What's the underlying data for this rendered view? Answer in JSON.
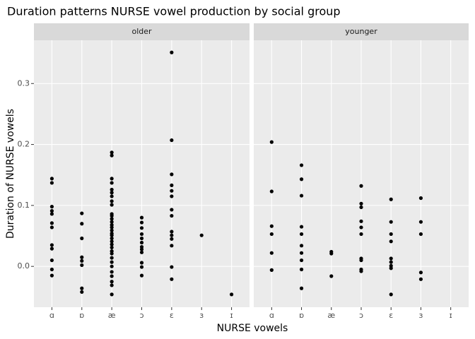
{
  "chart_data": {
    "type": "scatter",
    "title": "Duration patterns NURSE vowel production by social group",
    "x_label": "NURSE vowels",
    "y_label": "Duration of NURSE vowels",
    "categories": [
      "ɑ",
      "ɒ",
      "æ",
      "ɔ",
      "ɛ",
      "ɜ",
      "ɪ"
    ],
    "ylim": [
      -0.067,
      0.371
    ],
    "yticks": [
      {
        "value": 0,
        "label": "0.0"
      },
      0.1,
      0.2,
      0.3
    ],
    "color": "#000000",
    "grid": true,
    "panels": [
      {
        "name": "older",
        "values": [
          [
            0.144,
            0.137,
            0.098,
            0.091,
            0.086,
            0.071,
            0.064,
            0.035,
            0.029,
            0.01,
            -0.005,
            -0.015
          ],
          [
            0.087,
            0.07,
            0.046,
            0.015,
            0.009,
            0.002,
            -0.036,
            -0.042
          ],
          [
            0.187,
            0.182,
            0.144,
            0.137,
            0.126,
            0.121,
            0.115,
            0.107,
            0.101,
            0.086,
            0.083,
            0.078,
            0.073,
            0.068,
            0.064,
            0.059,
            0.054,
            0.051,
            0.046,
            0.041,
            0.036,
            0.031,
            0.025,
            0.021,
            0.014,
            0.007,
            0,
            -0.009,
            -0.016,
            -0.025,
            -0.031,
            -0.046
          ],
          [
            0.08,
            0.072,
            0.063,
            0.053,
            0.046,
            0.039,
            0.032,
            0.028,
            0.023,
            0.006,
            -0.001,
            -0.015
          ],
          [
            0.351,
            0.207,
            0.151,
            0.133,
            0.124,
            0.115,
            0.093,
            0.083,
            0.057,
            0.051,
            0.045,
            0.034,
            -0.001,
            -0.021
          ],
          [
            0.051
          ],
          [
            -0.046
          ]
        ]
      },
      {
        "name": "younger",
        "values": [
          [
            0.204,
            0.123,
            0.066,
            0.053,
            0.022,
            -0.006
          ],
          [
            0.166,
            0.143,
            0.116,
            0.065,
            0.053,
            0.034,
            0.022,
            0.01,
            -0.005,
            -0.036
          ],
          [
            0.024,
            0.021,
            -0.016
          ],
          [
            0.132,
            0.103,
            0.097,
            0.074,
            0.064,
            0.053,
            0.013,
            0.01,
            -0.005,
            -0.008
          ],
          [
            0.11,
            0.073,
            0.053,
            0.041,
            0.013,
            0.007,
            0.001,
            -0.003,
            -0.046
          ],
          [
            0.112,
            0.073,
            0.053,
            -0.01,
            -0.021
          ],
          []
        ]
      }
    ]
  }
}
